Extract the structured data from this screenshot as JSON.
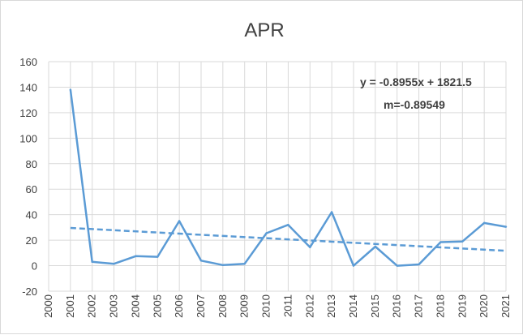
{
  "chart_data": {
    "type": "line",
    "title": "APR",
    "x": [
      2001,
      2002,
      2003,
      2004,
      2005,
      2006,
      2007,
      2008,
      2009,
      2010,
      2011,
      2012,
      2013,
      2014,
      2015,
      2016,
      2017,
      2018,
      2019,
      2020,
      2021
    ],
    "series": [
      {
        "values": [
          138,
          3,
          1.5,
          7.5,
          7,
          35,
          4,
          0.5,
          1.5,
          25.5,
          32,
          14.5,
          42,
          0,
          15,
          0,
          1,
          18.5,
          19,
          33.5,
          30.5
        ]
      }
    ],
    "trendline": {
      "type": "linear",
      "slope": -0.8955,
      "intercept": 1821.5,
      "equation_label": "y = -0.8955x + 1821.5",
      "slope_label": "m=-0.89549"
    },
    "xlim": [
      2000,
      2021
    ],
    "ylim": [
      -20,
      160
    ],
    "y_ticks": [
      -20,
      0,
      20,
      40,
      60,
      80,
      100,
      120,
      140,
      160
    ],
    "x_ticks": [
      2000,
      2001,
      2002,
      2003,
      2004,
      2005,
      2006,
      2007,
      2008,
      2009,
      2010,
      2011,
      2012,
      2013,
      2014,
      2015,
      2016,
      2017,
      2018,
      2019,
      2020,
      2021
    ],
    "grid": true,
    "legend": "none",
    "colors": {
      "series": "#5b9bd5",
      "grid": "#d9d9d9",
      "text": "#404040"
    }
  }
}
